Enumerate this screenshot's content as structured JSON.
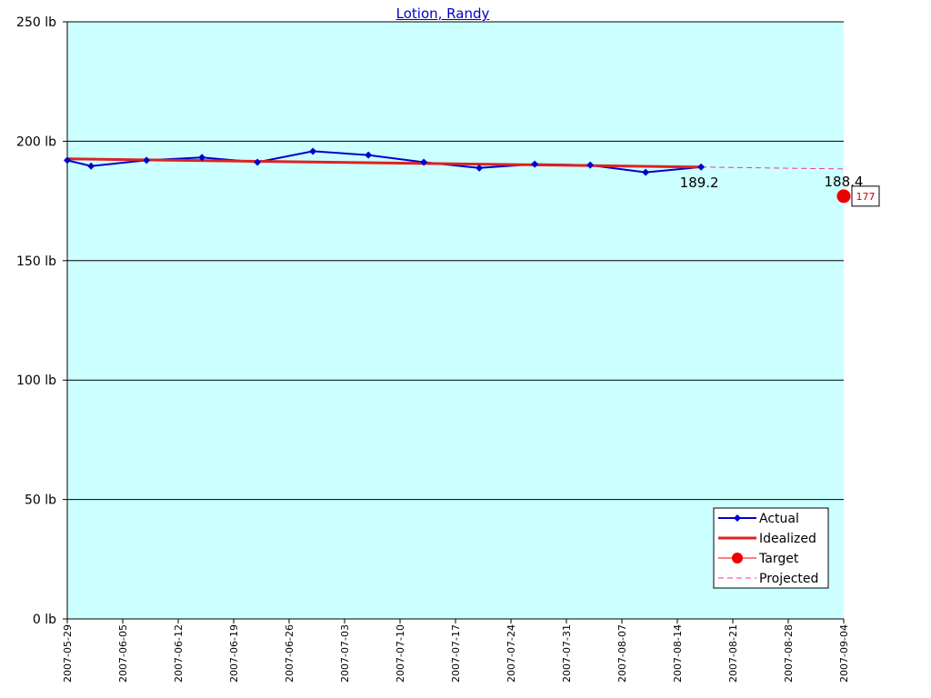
{
  "chart_data": {
    "type": "line",
    "title": "Lotion, Randy",
    "ylim": [
      0,
      250
    ],
    "xlim": [
      "2007-05-29",
      "2007-09-04"
    ],
    "y_ticks": [
      "0 lb",
      "50 lb",
      "100 lb",
      "150 lb",
      "200 lb",
      "250 lb"
    ],
    "y_tick_values": [
      0,
      50,
      100,
      150,
      200,
      250
    ],
    "x_ticks": [
      "2007-05-29",
      "2007-06-05",
      "2007-06-12",
      "2007-06-19",
      "2007-06-26",
      "2007-07-03",
      "2007-07-10",
      "2007-07-17",
      "2007-07-24",
      "2007-07-31",
      "2007-08-07",
      "2007-08-14",
      "2007-08-21",
      "2007-08-28",
      "2007-09-04"
    ],
    "grid": "horizontal",
    "legend_position": "bottom-right",
    "colors": {
      "plot_background": "#ccffff",
      "actual": "#0000cc",
      "idealized": "#dd2222",
      "target": "#ee0000",
      "projected": "#ff3399"
    },
    "series": [
      {
        "name": "Actual",
        "x": [
          "2007-05-29",
          "2007-06-01",
          "2007-06-08",
          "2007-06-15",
          "2007-06-22",
          "2007-06-29",
          "2007-07-06",
          "2007-07-13",
          "2007-07-20",
          "2007-07-27",
          "2007-08-03",
          "2007-08-10",
          "2007-08-17"
        ],
        "values": [
          192.0,
          189.6,
          192.0,
          193.2,
          191.2,
          195.8,
          194.2,
          191.2,
          188.8,
          190.4,
          190.0,
          187.0,
          189.2
        ]
      },
      {
        "name": "Idealized",
        "x": [
          "2007-05-29",
          "2007-08-17"
        ],
        "values": [
          192.6,
          189.2
        ]
      },
      {
        "name": "Target",
        "x": [
          "2007-09-04"
        ],
        "values": [
          177
        ]
      },
      {
        "name": "Projected",
        "x": [
          "2007-08-17",
          "2007-09-04"
        ],
        "values": [
          189.2,
          188.4
        ]
      }
    ],
    "annotations": [
      {
        "text": "189.2",
        "x": "2007-08-17",
        "y": 189.2
      },
      {
        "text": "188.4",
        "x": "2007-09-04",
        "y": 188.4
      },
      {
        "text": "177",
        "x": "2007-09-04",
        "y": 177
      }
    ]
  }
}
